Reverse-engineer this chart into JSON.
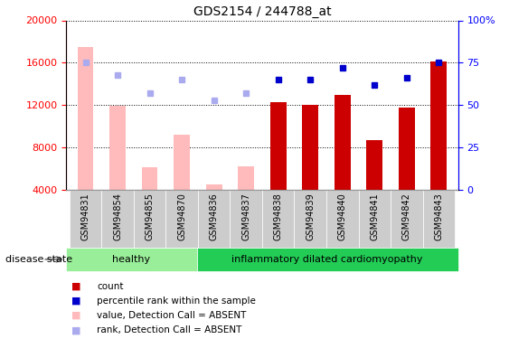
{
  "title": "GDS2154 / 244788_at",
  "samples": [
    "GSM94831",
    "GSM94854",
    "GSM94855",
    "GSM94870",
    "GSM94836",
    "GSM94837",
    "GSM94838",
    "GSM94839",
    "GSM94840",
    "GSM94841",
    "GSM94842",
    "GSM94843"
  ],
  "bar_values_present": [
    null,
    null,
    null,
    null,
    null,
    null,
    12300,
    12000,
    13000,
    8700,
    11800,
    16100
  ],
  "absent_bar_values": [
    17500,
    11900,
    6100,
    9200,
    4500,
    6200,
    null,
    null,
    null,
    null,
    null,
    null
  ],
  "rank_present": [
    null,
    null,
    null,
    null,
    null,
    null,
    65,
    65,
    72,
    62,
    66,
    75
  ],
  "rank_absent": [
    75,
    68,
    57,
    65,
    53,
    57,
    null,
    null,
    null,
    null,
    null,
    null
  ],
  "ylim_left": [
    4000,
    20000
  ],
  "ylim_right": [
    0,
    100
  ],
  "yticks_left": [
    4000,
    8000,
    12000,
    16000,
    20000
  ],
  "yticks_right": [
    0,
    25,
    50,
    75,
    100
  ],
  "healthy_label": "healthy",
  "disease_label": "inflammatory dilated cardiomyopathy",
  "disease_state_label": "disease state",
  "healthy_color": "#99ee99",
  "disease_color": "#22cc55",
  "group_boundary": 4,
  "bar_color_present": "#cc0000",
  "bar_color_absent": "#ffbbbb",
  "dot_color_present": "#0000cc",
  "dot_color_absent": "#aaaaee",
  "legend_items": [
    "count",
    "percentile rank within the sample",
    "value, Detection Call = ABSENT",
    "rank, Detection Call = ABSENT"
  ],
  "xtick_bg_color": "#cccccc",
  "figsize": [
    5.63,
    3.75
  ]
}
